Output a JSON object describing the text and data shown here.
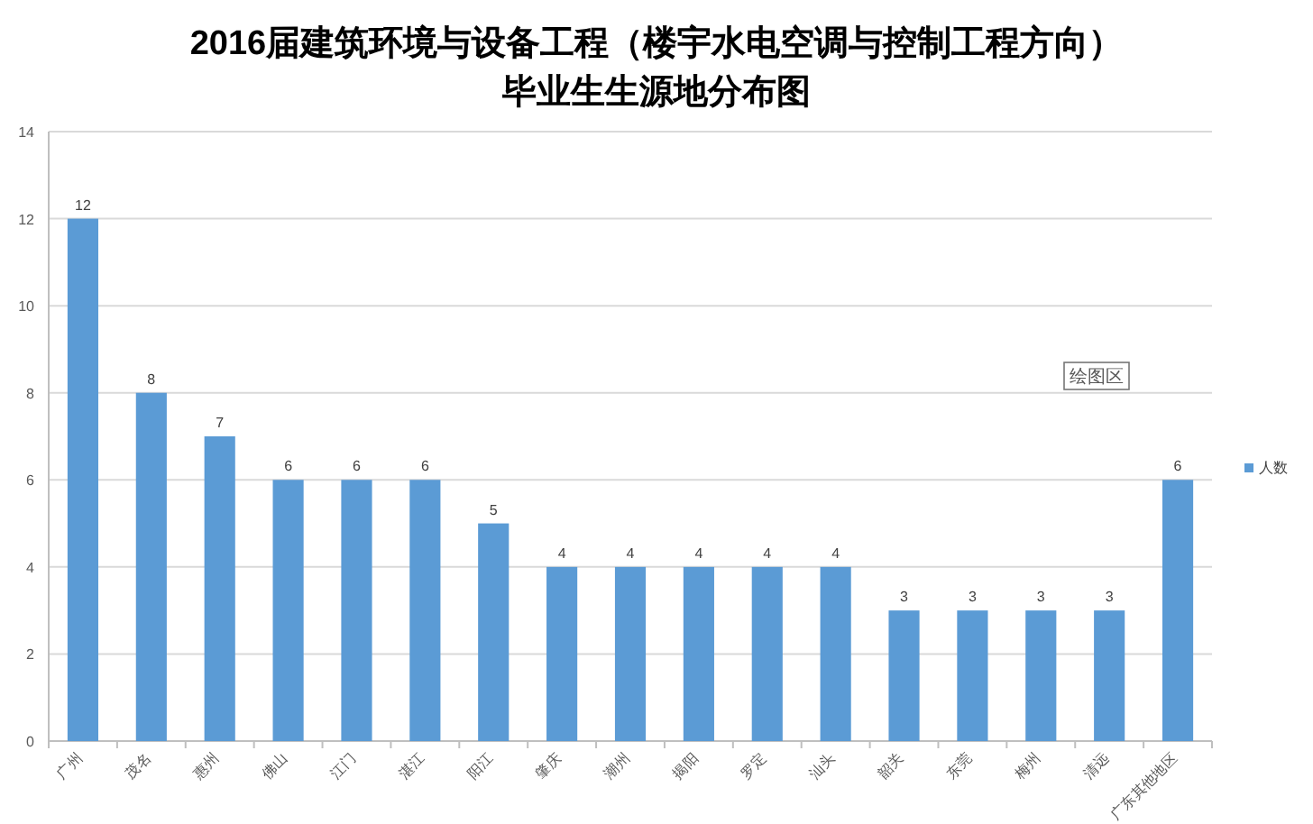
{
  "chart_data": {
    "type": "bar",
    "title": "2016届建筑环境与设备工程（楼宇水电空调与控制工程方向）",
    "subtitle": "毕业生生源地分布图",
    "categories": [
      "广州",
      "茂名",
      "惠州",
      "佛山",
      "江门",
      "湛江",
      "阳江",
      "肇庆",
      "潮州",
      "揭阳",
      "罗定",
      "汕头",
      "韶关",
      "东莞",
      "梅州",
      "清远",
      "广东其他地区"
    ],
    "series": [
      {
        "name": "人数",
        "color": "#5b9bd5",
        "values": [
          12,
          8,
          7,
          6,
          6,
          6,
          5,
          4,
          4,
          4,
          4,
          4,
          3,
          3,
          3,
          3,
          6
        ]
      }
    ],
    "ylim": [
      0,
      14
    ],
    "yticks": [
      0,
      2,
      4,
      6,
      8,
      10,
      12,
      14
    ],
    "grid": "y",
    "legend": "right",
    "data_labels": true,
    "annotations": [
      "绘图区"
    ]
  }
}
